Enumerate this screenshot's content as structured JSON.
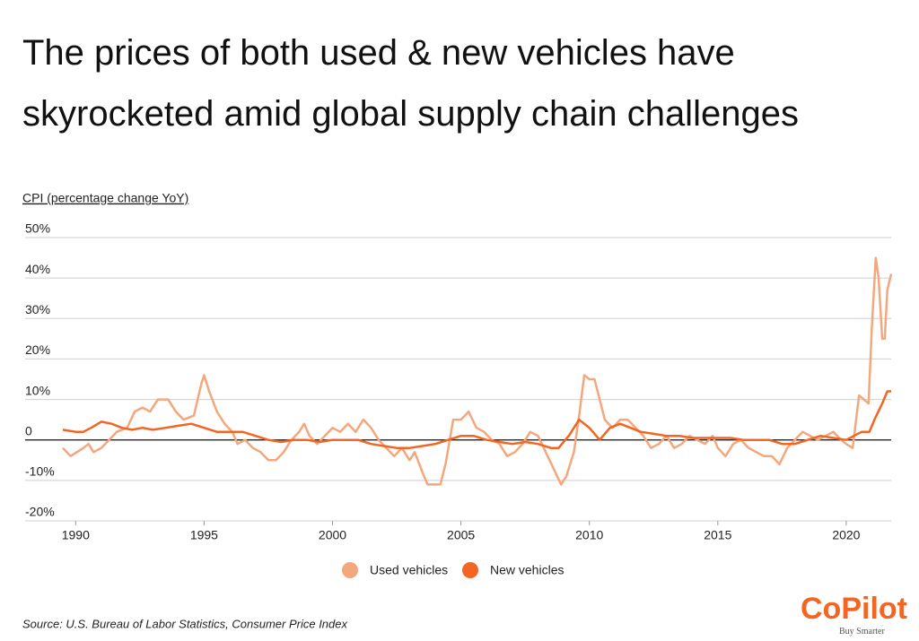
{
  "title_lines": [
    "The prices of both used & new vehicles have",
    "skyrocketed amid global supply chain challenges"
  ],
  "source": "Source:  U.S. Bureau of Labor Statistics, Consumer Price Index",
  "logo": {
    "name": "CoPilot",
    "tagline": "Buy Smarter"
  },
  "chart_data": {
    "type": "line",
    "y_label": "CPI (percentage change YoY)",
    "xlim": [
      1989.5,
      2021.75
    ],
    "xticks": [
      1990,
      1995,
      2000,
      2005,
      2010,
      2015,
      2020
    ],
    "ylim": [
      -20,
      50
    ],
    "yticks": [
      {
        "value": 50,
        "label": "50%"
      },
      {
        "value": 40,
        "label": "40%"
      },
      {
        "value": 30,
        "label": "30%"
      },
      {
        "value": 20,
        "label": "20%"
      },
      {
        "value": 10,
        "label": "10%"
      },
      0,
      {
        "value": -10,
        "label": "-10%"
      },
      {
        "value": -20,
        "label": "-20%"
      }
    ],
    "grid": true,
    "legend": "bottom",
    "series": [
      {
        "name": "Used vehicles",
        "color": "#f4a67d",
        "x": [
          1989.5,
          1989.8,
          1990.3,
          1990.5,
          1990.7,
          1991,
          1991.3,
          1991.6,
          1992,
          1992.3,
          1992.6,
          1992.9,
          1993.2,
          1993.6,
          1993.9,
          1994.2,
          1994.6,
          1994.9,
          1995,
          1995.2,
          1995.5,
          1995.8,
          1996.1,
          1996.3,
          1996.6,
          1996.9,
          1997.2,
          1997.5,
          1997.8,
          1998.1,
          1998.4,
          1998.7,
          1998.9,
          1999.1,
          1999.4,
          1999.7,
          2000,
          2000.3,
          2000.6,
          2000.9,
          2001.2,
          2001.5,
          2001.8,
          2002.1,
          2002.4,
          2002.7,
          2003,
          2003.2,
          2003.5,
          2003.7,
          2004,
          2004.2,
          2004.4,
          2004.7,
          2005,
          2005.3,
          2005.6,
          2005.9,
          2006.2,
          2006.5,
          2006.8,
          2007.1,
          2007.4,
          2007.7,
          2008,
          2008.3,
          2008.6,
          2008.9,
          2009.1,
          2009.4,
          2009.6,
          2009.8,
          2010,
          2010.2,
          2010.4,
          2010.6,
          2010.9,
          2011.2,
          2011.5,
          2011.8,
          2012.1,
          2012.4,
          2012.7,
          2013,
          2013.3,
          2013.6,
          2013.9,
          2014.2,
          2014.5,
          2014.8,
          2015,
          2015.3,
          2015.6,
          2015.9,
          2016.2,
          2016.5,
          2016.8,
          2017.1,
          2017.4,
          2017.7,
          2018,
          2018.3,
          2018.6,
          2018.9,
          2019.2,
          2019.5,
          2019.8,
          2020,
          2020.25,
          2020.5,
          2020.87,
          2021,
          2021.15,
          2021.26,
          2021.4,
          2021.5,
          2021.6,
          2021.75
        ],
        "values": [
          -2,
          -4,
          -2,
          -1,
          -3,
          -2,
          0,
          2,
          3,
          7,
          8,
          7,
          10,
          10,
          7,
          5,
          6,
          14,
          16,
          12,
          7,
          4,
          2,
          -1,
          0,
          -2,
          -3,
          -5,
          -5,
          -3,
          0,
          2,
          4,
          1,
          -1,
          1,
          3,
          2,
          4,
          2,
          5,
          3,
          0,
          -2,
          -4,
          -2,
          -5,
          -3,
          -8,
          -11,
          -11,
          -11,
          -6,
          5,
          5,
          7,
          3,
          2,
          0,
          -1,
          -4,
          -3,
          -1,
          2,
          1,
          -3,
          -7,
          -11,
          -9,
          -3,
          6,
          16,
          15,
          15,
          10,
          5,
          3,
          5,
          5,
          3,
          1,
          -2,
          -1,
          1,
          -2,
          -1,
          1,
          0,
          -1,
          1,
          -2,
          -4,
          -1,
          0,
          -2,
          -3,
          -4,
          -4,
          -6,
          -2,
          0,
          2,
          1,
          0,
          1,
          2,
          0,
          -1,
          -2,
          11,
          9,
          28,
          45,
          40,
          25,
          25,
          37,
          41
        ]
      },
      {
        "name": "New vehicles",
        "color": "#f26522",
        "x": [
          1989.5,
          1990,
          1990.3,
          1990.6,
          1991,
          1991.4,
          1991.8,
          1992.2,
          1992.6,
          1993,
          1993.5,
          1994,
          1994.5,
          1995,
          1995.5,
          1996,
          1996.5,
          1997,
          1997.5,
          1998,
          1998.5,
          1999,
          1999.5,
          2000,
          2000.5,
          2001,
          2001.5,
          2002,
          2002.5,
          2003,
          2003.5,
          2004,
          2004.5,
          2005,
          2005.5,
          2006,
          2006.5,
          2007,
          2007.5,
          2008,
          2008.5,
          2008.8,
          2009.2,
          2009.6,
          2010,
          2010.4,
          2010.8,
          2011.2,
          2011.6,
          2012,
          2012.5,
          2013,
          2013.5,
          2014,
          2014.5,
          2015,
          2015.5,
          2016,
          2016.5,
          2017,
          2017.5,
          2018,
          2018.5,
          2019,
          2019.5,
          2020,
          2020.3,
          2020.6,
          2020.9,
          2021.1,
          2021.4,
          2021.6,
          2021.75
        ],
        "values": [
          2.5,
          2,
          2,
          3,
          4.5,
          4,
          3,
          2.5,
          3,
          2.5,
          3,
          3.5,
          4,
          3,
          2,
          2,
          2,
          1,
          0,
          -0.5,
          0,
          0,
          -0.5,
          0,
          0,
          0,
          -1,
          -1.5,
          -2,
          -2,
          -1.5,
          -1,
          0,
          1,
          1,
          0,
          -0.5,
          -1,
          -0.5,
          -1,
          -2,
          -2,
          1,
          5,
          3,
          0,
          3,
          4,
          3,
          2,
          1.5,
          1,
          1,
          0.5,
          0.5,
          0.5,
          0.5,
          0,
          0,
          0,
          -1,
          -1,
          0,
          1,
          0.5,
          0,
          1,
          2,
          2,
          5,
          9,
          12,
          12
        ]
      }
    ]
  }
}
